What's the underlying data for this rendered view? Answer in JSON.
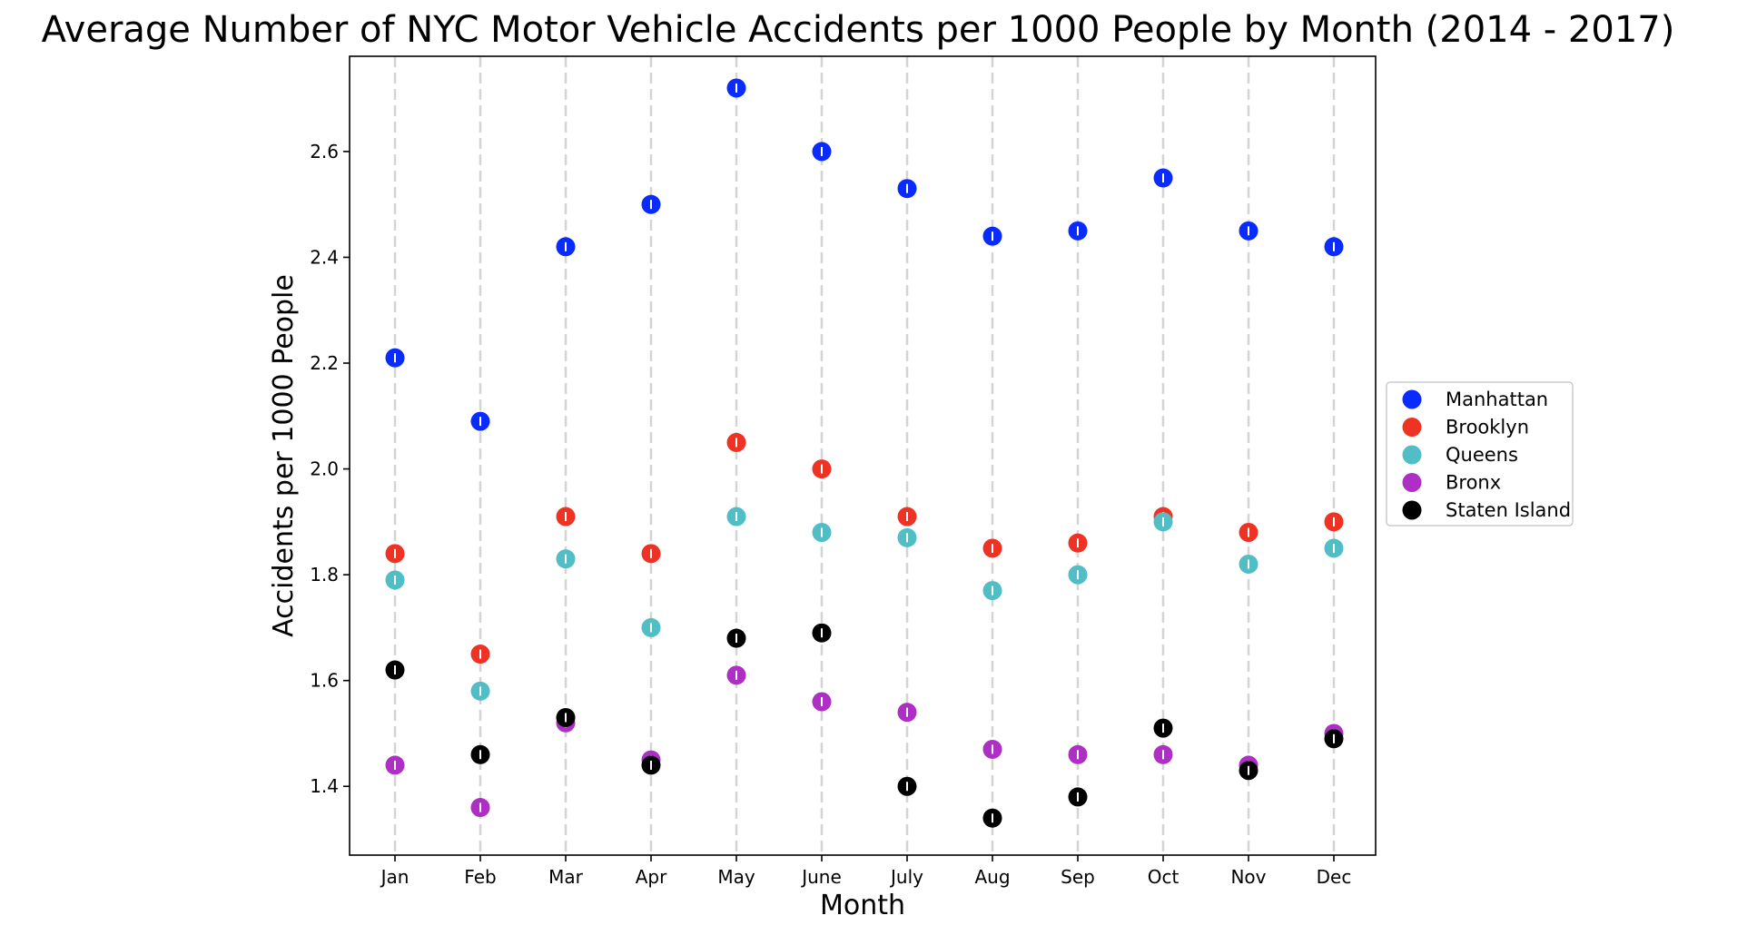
{
  "chart_data": {
    "type": "scatter",
    "title": "Average Number of NYC Motor Vehicle Accidents per 1000 People by Month (2014 - 2017)",
    "xlabel": "Month",
    "ylabel": "Accidents per 1000 People",
    "categories": [
      "Jan",
      "Feb",
      "Mar",
      "Apr",
      "May",
      "June",
      "July",
      "Aug",
      "Sep",
      "Oct",
      "Nov",
      "Dec"
    ],
    "ylim": [
      1.27,
      2.78
    ],
    "yticks": [
      1.4,
      1.6,
      1.8,
      2.0,
      2.2,
      2.4,
      2.6
    ],
    "ytick_labels": [
      "1.4",
      "1.6",
      "1.8",
      "2.0",
      "2.2",
      "2.4",
      "2.6"
    ],
    "grid": "vertical dashed lines at each month",
    "legend_position": "right, outside plot",
    "series": [
      {
        "name": "Manhattan",
        "color": "#0a2bff",
        "values": [
          2.21,
          2.09,
          2.42,
          2.5,
          2.72,
          2.6,
          2.53,
          2.44,
          2.45,
          2.55,
          2.45,
          2.42
        ]
      },
      {
        "name": "Brooklyn",
        "color": "#ee3325",
        "values": [
          1.84,
          1.65,
          1.91,
          1.84,
          2.05,
          2.0,
          1.91,
          1.85,
          1.86,
          1.91,
          1.88,
          1.9
        ]
      },
      {
        "name": "Queens",
        "color": "#50bec4",
        "values": [
          1.79,
          1.58,
          1.83,
          1.7,
          1.91,
          1.88,
          1.87,
          1.77,
          1.8,
          1.9,
          1.82,
          1.85
        ]
      },
      {
        "name": "Bronx",
        "color": "#ad2fc4",
        "values": [
          1.44,
          1.36,
          1.52,
          1.45,
          1.61,
          1.56,
          1.54,
          1.47,
          1.46,
          1.46,
          1.44,
          1.5
        ]
      },
      {
        "name": "Staten Island",
        "color": "#000000",
        "values": [
          1.62,
          1.46,
          1.53,
          1.44,
          1.68,
          1.69,
          null,
          null,
          null,
          1.51,
          1.43,
          1.49
        ]
      }
    ],
    "staten_island_extra": {
      "note": "Staten Island values shown for July, Aug, Sep",
      "values_by_category": {
        "July": 1.4,
        "Aug": 1.34,
        "Sep": 1.38
      }
    }
  }
}
